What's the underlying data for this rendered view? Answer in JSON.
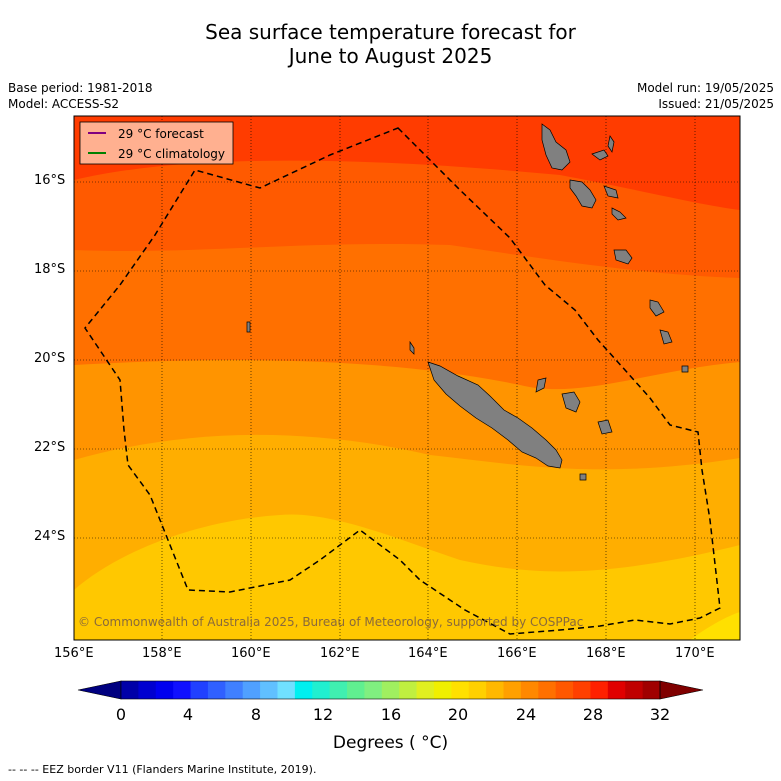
{
  "title_line1": "Sea surface temperature forecast for",
  "title_line2": "June to August 2025",
  "base_period": "Base period: 1981-2018",
  "model": "Model: ACCESS-S2",
  "model_run": "Model run: 19/05/2025",
  "issued": "Issued: 21/05/2025",
  "legend": {
    "forecast": "29 °C  forecast",
    "climatology": "29 °C  climatology",
    "forecast_color": "#800080",
    "climatology_color": "#008000"
  },
  "lat_labels": [
    "16°S",
    "18°S",
    "20°S",
    "22°S",
    "24°S"
  ],
  "lon_labels": [
    "156°E",
    "158°E",
    "160°E",
    "162°E",
    "164°E",
    "166°E",
    "168°E",
    "170°E"
  ],
  "copyright": "© Commonwealth of Australia 2025, Bureau of Meteorology, supported by COSPPac",
  "colorbar": {
    "tick_labels": [
      "0",
      "4",
      "8",
      "12",
      "16",
      "20",
      "24",
      "28",
      "32"
    ],
    "label": "Degrees ( °C)",
    "colors": [
      "#000080",
      "#0000a8",
      "#0000d0",
      "#0000f0",
      "#1010ff",
      "#2040ff",
      "#3060ff",
      "#4080ff",
      "#50a0ff",
      "#60c0ff",
      "#70e0ff",
      "#00f0f0",
      "#20f0d0",
      "#40f0b0",
      "#60f090",
      "#80f080",
      "#a0f060",
      "#c0f040",
      "#e0f020",
      "#f0f000",
      "#ffe000",
      "#ffd000",
      "#ffb800",
      "#ffa000",
      "#ff8800",
      "#ff7000",
      "#ff5800",
      "#ff4000",
      "#ff2000",
      "#e00000",
      "#c00000",
      "#a00000",
      "#800000"
    ]
  },
  "footer": "--  --  -- EEZ border V11 (Flanders Marine Institute, 2019)."
}
